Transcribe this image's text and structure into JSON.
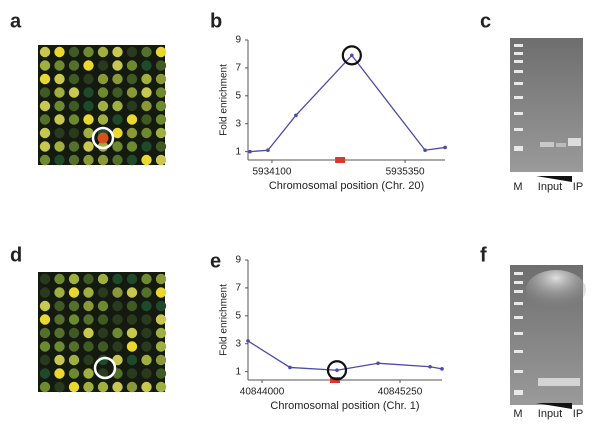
{
  "panel_labels": [
    "a",
    "b",
    "c",
    "d",
    "e",
    "f"
  ],
  "gels": [
    {
      "lanes": [
        "M",
        "Input",
        "IP"
      ]
    },
    {
      "lanes": [
        "M",
        "Input",
        "IP"
      ]
    }
  ],
  "chart_data": [
    {
      "type": "line",
      "ylabel": "Fold enrichment",
      "xlabel": "Chromosomal position (Chr. 20)",
      "x": [
        5933894,
        5934062,
        5934325,
        5934850,
        5935538,
        5935726
      ],
      "values": [
        1,
        1.1,
        3.6,
        7.9,
        1.1,
        1.3
      ],
      "color": "#4b4ba8",
      "xlim": [
        5933875,
        5935725
      ],
      "xticks": [
        5934100,
        5935350
      ],
      "ylim": [
        0.4,
        9
      ],
      "yticks": [
        1,
        3,
        5,
        7,
        9
      ],
      "highlight_index": 3,
      "marker_x": 5934740,
      "marker_color": "#d83a2a"
    },
    {
      "type": "line",
      "ylabel": "Fold enrichment",
      "xlabel": "Chromosomal position (Chr. 1)",
      "x": [
        40843873,
        40844253,
        40844679,
        40845051,
        40845522,
        40845630
      ],
      "values": [
        3.2,
        1.3,
        1.1,
        1.6,
        1.35,
        1.2
      ],
      "color": "#4b4ba8",
      "xlim": [
        40843873,
        40845630
      ],
      "xticks": [
        40844000,
        40845250
      ],
      "ylim": [
        0.4,
        9
      ],
      "yticks": [
        1,
        3,
        5,
        7,
        9
      ],
      "highlight_index": 2,
      "marker_x": 40844661,
      "marker_color": "#d83a2a"
    }
  ]
}
